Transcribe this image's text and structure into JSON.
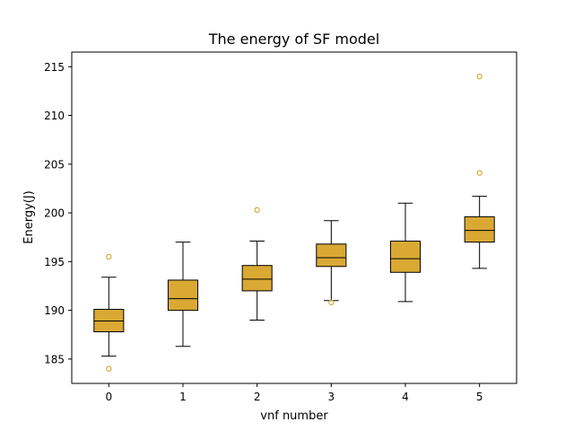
{
  "chart_data": {
    "type": "boxplot",
    "title": "The energy of SF model",
    "xlabel": "vnf number",
    "ylabel": "Energy(J)",
    "ylim": [
      182.5,
      216.5
    ],
    "yticks": [
      185,
      190,
      195,
      200,
      205,
      210,
      215
    ],
    "categories": [
      "0",
      "1",
      "2",
      "3",
      "4",
      "5"
    ],
    "boxes": [
      {
        "whisker_low": 185.3,
        "q1": 187.8,
        "median": 188.9,
        "q3": 190.1,
        "whisker_high": 193.4,
        "outliers": [
          195.5,
          184.0
        ]
      },
      {
        "whisker_low": 186.3,
        "q1": 190.0,
        "median": 191.2,
        "q3": 193.1,
        "whisker_high": 197.0,
        "outliers": []
      },
      {
        "whisker_low": 189.0,
        "q1": 192.0,
        "median": 193.2,
        "q3": 194.6,
        "whisker_high": 197.1,
        "outliers": [
          200.3
        ]
      },
      {
        "whisker_low": 191.0,
        "q1": 194.5,
        "median": 195.4,
        "q3": 196.8,
        "whisker_high": 199.2,
        "outliers": [
          190.8
        ]
      },
      {
        "whisker_low": 190.9,
        "q1": 193.9,
        "median": 195.3,
        "q3": 197.1,
        "whisker_high": 201.0,
        "outliers": []
      },
      {
        "whisker_low": 194.3,
        "q1": 197.0,
        "median": 198.2,
        "q3": 199.6,
        "whisker_high": 201.7,
        "outliers": [
          204.1,
          214.0
        ]
      }
    ],
    "grid": false,
    "colors": {
      "box_fill": "#DAA934",
      "box_edge": "#000000",
      "outlier": "#DAA934",
      "axes": "#000000"
    }
  }
}
